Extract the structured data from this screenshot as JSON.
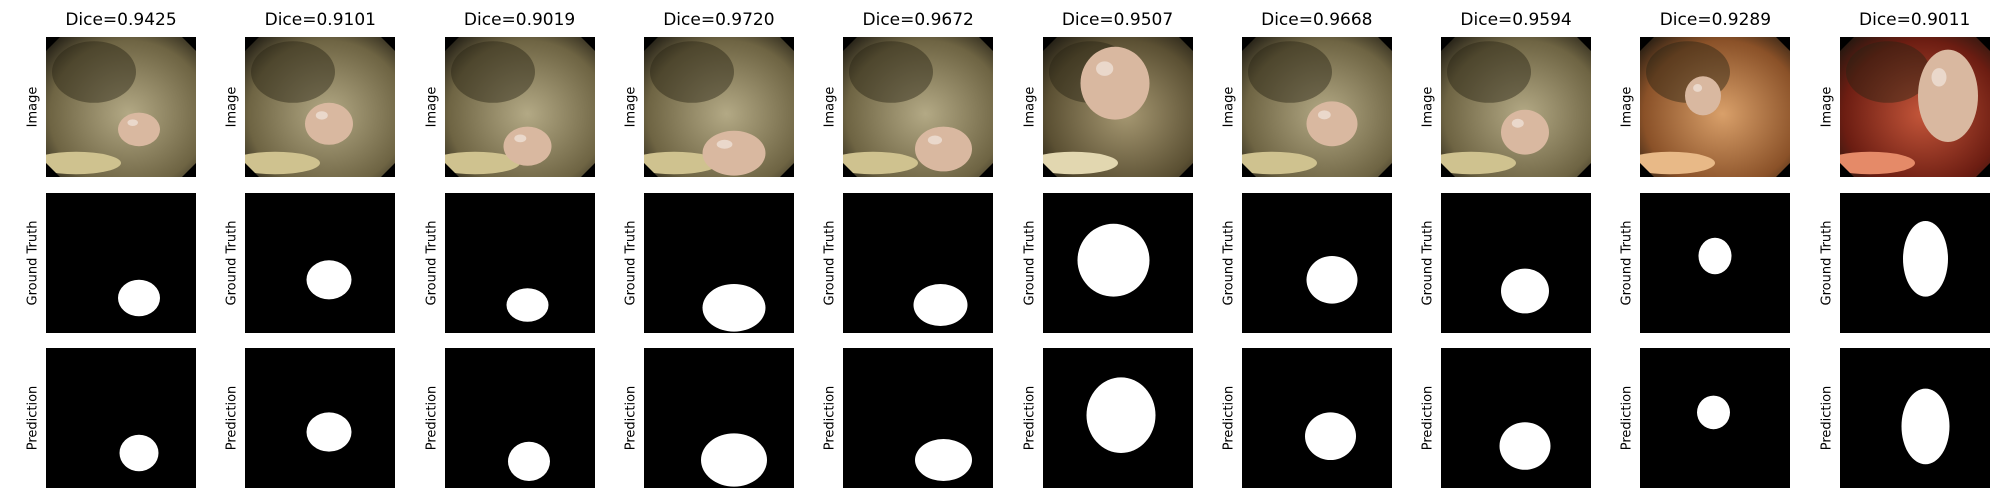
{
  "row_labels": [
    "Image",
    "Ground Truth",
    "Prediction"
  ],
  "samples": [
    {
      "title": "Dice=0.9425",
      "theme": "tissue",
      "polyp": [
        0.62,
        0.66,
        0.14,
        0.12
      ],
      "gt": [
        0.62,
        0.75,
        0.14,
        0.13
      ],
      "pred": [
        0.62,
        0.75,
        0.13,
        0.13
      ]
    },
    {
      "title": "Dice=0.9101",
      "theme": "tissue",
      "polyp": [
        0.56,
        0.62,
        0.16,
        0.15
      ],
      "gt": [
        0.56,
        0.62,
        0.15,
        0.14
      ],
      "pred": [
        0.56,
        0.6,
        0.15,
        0.14
      ]
    },
    {
      "title": "Dice=0.9019",
      "theme": "tissue",
      "polyp": [
        0.55,
        0.78,
        0.16,
        0.14
      ],
      "gt": [
        0.55,
        0.8,
        0.14,
        0.12
      ],
      "pred": [
        0.56,
        0.81,
        0.14,
        0.14
      ]
    },
    {
      "title": "Dice=0.9720",
      "theme": "tissue",
      "polyp": [
        0.6,
        0.83,
        0.21,
        0.16
      ],
      "gt": [
        0.6,
        0.82,
        0.21,
        0.17
      ],
      "pred": [
        0.6,
        0.8,
        0.22,
        0.19
      ]
    },
    {
      "title": "Dice=0.9672",
      "theme": "tissue",
      "polyp": [
        0.67,
        0.8,
        0.19,
        0.16
      ],
      "gt": [
        0.65,
        0.8,
        0.18,
        0.15
      ],
      "pred": [
        0.67,
        0.8,
        0.19,
        0.15
      ]
    },
    {
      "title": "Dice=0.9507",
      "theme": "bright",
      "polyp": [
        0.48,
        0.33,
        0.23,
        0.26
      ],
      "gt": [
        0.47,
        0.48,
        0.24,
        0.26
      ],
      "pred": [
        0.52,
        0.48,
        0.23,
        0.27
      ]
    },
    {
      "title": "Dice=0.9668",
      "theme": "tissue",
      "polyp": [
        0.6,
        0.62,
        0.17,
        0.16
      ],
      "gt": [
        0.6,
        0.62,
        0.17,
        0.17
      ],
      "pred": [
        0.59,
        0.63,
        0.17,
        0.17
      ]
    },
    {
      "title": "Dice=0.9594",
      "theme": "tissue",
      "polyp": [
        0.56,
        0.68,
        0.16,
        0.16
      ],
      "gt": [
        0.56,
        0.7,
        0.16,
        0.16
      ],
      "pred": [
        0.56,
        0.7,
        0.17,
        0.17
      ]
    },
    {
      "title": "Dice=0.9289",
      "theme": "orange",
      "polyp": [
        0.42,
        0.42,
        0.12,
        0.14
      ],
      "gt": [
        0.5,
        0.45,
        0.11,
        0.13
      ],
      "pred": [
        0.49,
        0.46,
        0.11,
        0.12
      ]
    },
    {
      "title": "Dice=0.9011",
      "theme": "red",
      "polyp": [
        0.72,
        0.42,
        0.2,
        0.33
      ],
      "gt": [
        0.57,
        0.47,
        0.15,
        0.27
      ],
      "pred": [
        0.57,
        0.56,
        0.16,
        0.27
      ]
    }
  ],
  "colors": {
    "tissue": [
      "#b3a985",
      "#6e6443",
      "#cfc28f"
    ],
    "bright": [
      "#a69872",
      "#5b5033",
      "#e2d7b0"
    ],
    "orange": [
      "#d9a06a",
      "#8a5128",
      "#e8b987"
    ],
    "red": [
      "#c4563a",
      "#6c1d12",
      "#e58a68"
    ],
    "polyp": "#d9b8a0",
    "mask": "#ffffff",
    "background": "#000000"
  }
}
